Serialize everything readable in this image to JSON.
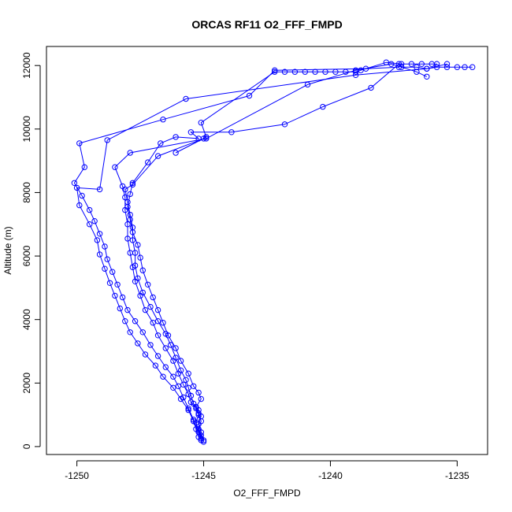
{
  "chart_data": {
    "type": "line",
    "title": "ORCAS RF11 O2_FFF_FMPD",
    "xlabel": "O2_FFF_FMPD",
    "ylabel": "Altitude (m)",
    "xlim": [
      -1251.2,
      -1233.8
    ],
    "ylim": [
      -250,
      12600
    ],
    "x_ticks": [
      -1250,
      -1245,
      -1240,
      -1235
    ],
    "x_tick_labels": [
      "-1250",
      "-1245",
      "-1240",
      "-1235"
    ],
    "y_ticks": [
      0,
      2000,
      4000,
      6000,
      8000,
      10000,
      12000
    ],
    "y_tick_labels": [
      "0",
      "2000",
      "4000",
      "6000",
      "8000",
      "10000",
      "12000"
    ],
    "grid": false,
    "legend": "none",
    "marker": "open-circle",
    "colors": {
      "series": "#0000ff",
      "axis": "#000000"
    },
    "series": [
      {
        "points": [
          [
            -1245.0,
            150
          ],
          [
            -1245.1,
            350
          ],
          [
            -1245.2,
            550
          ],
          [
            -1245.1,
            800
          ],
          [
            -1245.2,
            1050
          ],
          [
            -1245.3,
            1250
          ],
          [
            -1245.1,
            1500
          ],
          [
            -1245.2,
            1700
          ],
          [
            -1245.4,
            1900
          ],
          [
            -1245.6,
            2300
          ],
          [
            -1245.9,
            2700
          ],
          [
            -1246.1,
            3100
          ],
          [
            -1246.4,
            3500
          ],
          [
            -1246.6,
            3900
          ],
          [
            -1246.8,
            4300
          ],
          [
            -1247.0,
            4700
          ],
          [
            -1247.2,
            5100
          ],
          [
            -1247.4,
            5550
          ],
          [
            -1247.5,
            5950
          ],
          [
            -1247.6,
            6350
          ],
          [
            -1247.8,
            6750
          ],
          [
            -1247.9,
            7150
          ],
          [
            -1248.0,
            7550
          ],
          [
            -1247.9,
            7950
          ],
          [
            -1247.8,
            8300
          ],
          [
            -1247.2,
            8950
          ],
          [
            -1246.7,
            9550
          ],
          [
            -1246.1,
            9750
          ],
          [
            -1245.2,
            9700
          ],
          [
            -1245.5,
            9900
          ],
          [
            -1243.9,
            9900
          ],
          [
            -1241.8,
            10150
          ],
          [
            -1240.3,
            10700
          ],
          [
            -1238.4,
            11300
          ],
          [
            -1237.3,
            12050
          ],
          [
            -1237.2,
            11950
          ],
          [
            -1236.6,
            11950
          ],
          [
            -1236.2,
            11900
          ],
          [
            -1235.8,
            11950
          ],
          [
            -1235.4,
            11950
          ],
          [
            -1235.0,
            11950
          ],
          [
            -1234.7,
            11950
          ],
          [
            -1234.4,
            11950
          ]
        ]
      },
      {
        "points": [
          [
            -1245.0,
            200
          ],
          [
            -1245.1,
            450
          ],
          [
            -1245.2,
            700
          ],
          [
            -1245.1,
            950
          ],
          [
            -1245.2,
            1150
          ],
          [
            -1245.4,
            1350
          ],
          [
            -1245.5,
            1600
          ],
          [
            -1245.6,
            1850
          ],
          [
            -1245.7,
            2100
          ],
          [
            -1245.9,
            2400
          ],
          [
            -1246.1,
            2800
          ],
          [
            -1246.3,
            3200
          ],
          [
            -1246.5,
            3550
          ],
          [
            -1246.8,
            3950
          ],
          [
            -1247.1,
            4400
          ],
          [
            -1247.4,
            4850
          ],
          [
            -1247.6,
            5300
          ],
          [
            -1247.7,
            5700
          ],
          [
            -1247.7,
            6100
          ],
          [
            -1247.8,
            6500
          ],
          [
            -1247.8,
            6900
          ],
          [
            -1247.9,
            7300
          ],
          [
            -1248.0,
            7700
          ],
          [
            -1248.1,
            8100
          ],
          [
            -1247.8,
            8250
          ],
          [
            -1246.8,
            9150
          ],
          [
            -1245.0,
            9700
          ],
          [
            -1246.1,
            9250
          ],
          [
            -1244.9,
            9750
          ],
          [
            -1245.1,
            10200
          ],
          [
            -1242.2,
            11800
          ],
          [
            -1241.8,
            11800
          ],
          [
            -1241.4,
            11800
          ],
          [
            -1241.0,
            11800
          ],
          [
            -1240.6,
            11800
          ],
          [
            -1240.2,
            11800
          ],
          [
            -1239.8,
            11800
          ],
          [
            -1239.4,
            11800
          ],
          [
            -1239.0,
            11800
          ],
          [
            -1238.8,
            11850
          ],
          [
            -1237.8,
            12100
          ],
          [
            -1237.2,
            12050
          ],
          [
            -1236.8,
            12050
          ],
          [
            -1236.4,
            12050
          ],
          [
            -1236.0,
            12050
          ],
          [
            -1235.8,
            12050
          ]
        ]
      },
      {
        "points": [
          [
            -1245.1,
            250
          ],
          [
            -1245.2,
            500
          ],
          [
            -1245.3,
            750
          ],
          [
            -1245.2,
            1000
          ],
          [
            -1245.3,
            1200
          ],
          [
            -1245.5,
            1400
          ],
          [
            -1245.6,
            1650
          ],
          [
            -1245.8,
            1950
          ],
          [
            -1246.0,
            2300
          ],
          [
            -1246.2,
            2700
          ],
          [
            -1246.5,
            3100
          ],
          [
            -1246.8,
            3500
          ],
          [
            -1247.0,
            3900
          ],
          [
            -1247.3,
            4300
          ],
          [
            -1247.5,
            4750
          ],
          [
            -1247.7,
            5200
          ],
          [
            -1247.8,
            5650
          ],
          [
            -1247.9,
            6100
          ],
          [
            -1248.0,
            6550
          ],
          [
            -1248.0,
            7000
          ],
          [
            -1248.1,
            7450
          ],
          [
            -1248.1,
            7850
          ],
          [
            -1248.2,
            8200
          ],
          [
            -1248.5,
            8800
          ],
          [
            -1247.9,
            9250
          ],
          [
            -1244.9,
            9700
          ],
          [
            -1240.9,
            11400
          ],
          [
            -1239.0,
            11850
          ],
          [
            -1237.6,
            12050
          ],
          [
            -1236.6,
            11800
          ],
          [
            -1236.2,
            11650
          ]
        ]
      },
      {
        "points": [
          [
            -1245.2,
            300
          ],
          [
            -1245.3,
            550
          ],
          [
            -1245.4,
            850
          ],
          [
            -1245.6,
            1200
          ],
          [
            -1245.8,
            1550
          ],
          [
            -1246.0,
            1900
          ],
          [
            -1246.2,
            2200
          ],
          [
            -1246.5,
            2500
          ],
          [
            -1246.8,
            2850
          ],
          [
            -1247.1,
            3200
          ],
          [
            -1247.4,
            3600
          ],
          [
            -1247.7,
            3950
          ],
          [
            -1248.0,
            4300
          ],
          [
            -1248.2,
            4700
          ],
          [
            -1248.4,
            5100
          ],
          [
            -1248.6,
            5500
          ],
          [
            -1248.8,
            5900
          ],
          [
            -1248.9,
            6300
          ],
          [
            -1249.1,
            6700
          ],
          [
            -1249.3,
            7100
          ],
          [
            -1249.5,
            7450
          ],
          [
            -1249.8,
            7900
          ],
          [
            -1250.1,
            8300
          ],
          [
            -1249.7,
            8800
          ],
          [
            -1249.9,
            9550
          ],
          [
            -1246.6,
            10300
          ],
          [
            -1243.2,
            11050
          ],
          [
            -1242.2,
            11850
          ],
          [
            -1238.6,
            11900
          ],
          [
            -1237.3,
            11950
          ]
        ]
      },
      {
        "points": [
          [
            -1245.1,
            200
          ],
          [
            -1245.2,
            450
          ],
          [
            -1245.4,
            800
          ],
          [
            -1245.6,
            1150
          ],
          [
            -1245.9,
            1500
          ],
          [
            -1246.2,
            1850
          ],
          [
            -1246.6,
            2200
          ],
          [
            -1246.9,
            2550
          ],
          [
            -1247.3,
            2900
          ],
          [
            -1247.6,
            3250
          ],
          [
            -1247.9,
            3600
          ],
          [
            -1248.1,
            3950
          ],
          [
            -1248.3,
            4350
          ],
          [
            -1248.5,
            4750
          ],
          [
            -1248.7,
            5150
          ],
          [
            -1248.9,
            5600
          ],
          [
            -1249.1,
            6050
          ],
          [
            -1249.2,
            6500
          ],
          [
            -1249.5,
            7000
          ],
          [
            -1249.9,
            7600
          ],
          [
            -1250.0,
            8150
          ],
          [
            -1249.1,
            8100
          ],
          [
            -1248.8,
            9650
          ],
          [
            -1245.7,
            10950
          ],
          [
            -1239.0,
            11700
          ],
          [
            -1236.2,
            11900
          ],
          [
            -1235.4,
            12050
          ]
        ]
      }
    ]
  }
}
